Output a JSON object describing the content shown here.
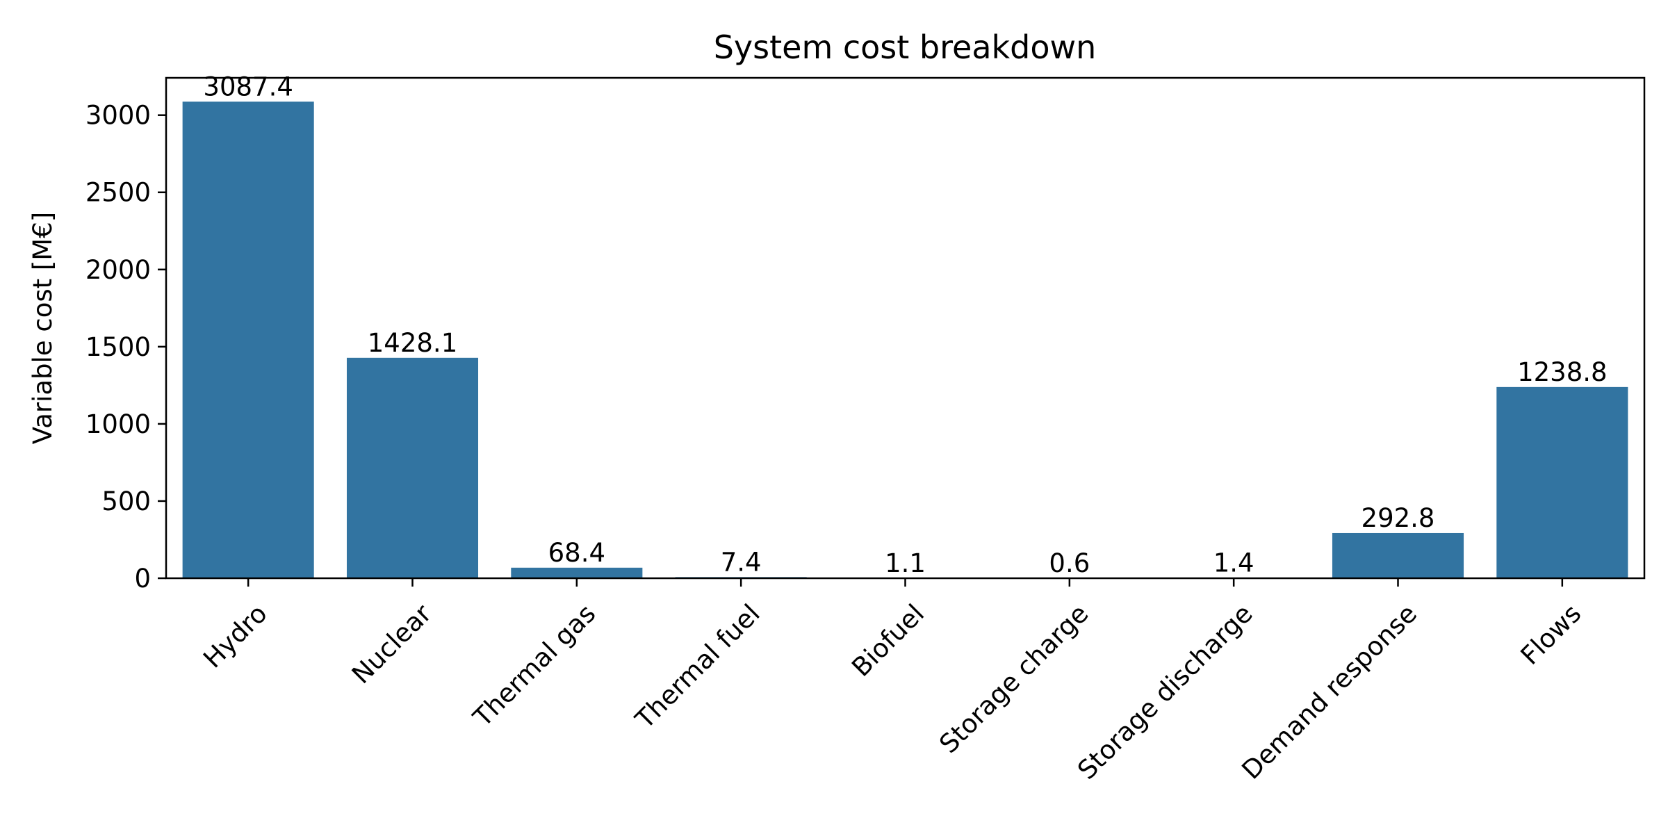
{
  "chart_data": {
    "type": "bar",
    "title": "System cost breakdown",
    "xlabel": "",
    "ylabel": "Variable cost [M€]",
    "categories": [
      "Hydro",
      "Nuclear",
      "Thermal gas",
      "Thermal fuel",
      "Biofuel",
      "Storage charge",
      "Storage discharge",
      "Demand response",
      "Flows"
    ],
    "values": [
      3087.4,
      1428.1,
      68.4,
      7.4,
      1.1,
      0.6,
      1.4,
      292.8,
      1238.8
    ],
    "value_labels": [
      "3087.4",
      "1428.1",
      "68.4",
      "7.4",
      "1.1",
      "0.6",
      "1.4",
      "292.8",
      "1238.8"
    ],
    "ylim": [
      0,
      3241.77
    ],
    "yticks": [
      0,
      500,
      1000,
      1500,
      2000,
      2500,
      3000
    ],
    "ytick_labels": [
      "0",
      "500",
      "1000",
      "1500",
      "2000",
      "2500",
      "3000"
    ],
    "grid": false,
    "legend": "none",
    "bar_color": "#3274a1",
    "xtick_rotation": 45
  }
}
